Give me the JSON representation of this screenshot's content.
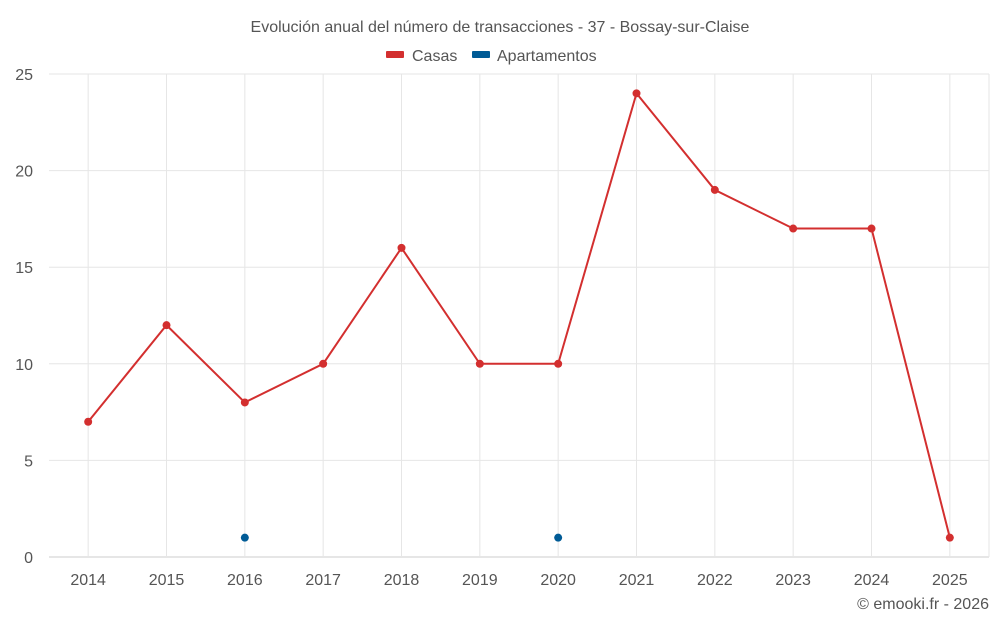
{
  "chart_data": {
    "type": "line",
    "title": "Evolución anual del número de transacciones - 37 - Bossay-sur-Claise",
    "categories": [
      "2014",
      "2015",
      "2016",
      "2017",
      "2018",
      "2019",
      "2020",
      "2021",
      "2022",
      "2023",
      "2024",
      "2025"
    ],
    "series": [
      {
        "name": "Casas",
        "color": "#d32f2f",
        "values": [
          7,
          12,
          8,
          10,
          16,
          10,
          10,
          24,
          19,
          17,
          17,
          1
        ]
      },
      {
        "name": "Apartamentos",
        "color": "#005b96",
        "values": [
          null,
          null,
          1,
          null,
          null,
          null,
          1,
          null,
          null,
          null,
          null,
          null
        ]
      }
    ],
    "ylim": [
      0,
      25
    ],
    "yticks": [
      0,
      5,
      10,
      15,
      20,
      25
    ],
    "grid": true,
    "legend_position": "top-center"
  },
  "credit": "© emooki.fr - 2026"
}
